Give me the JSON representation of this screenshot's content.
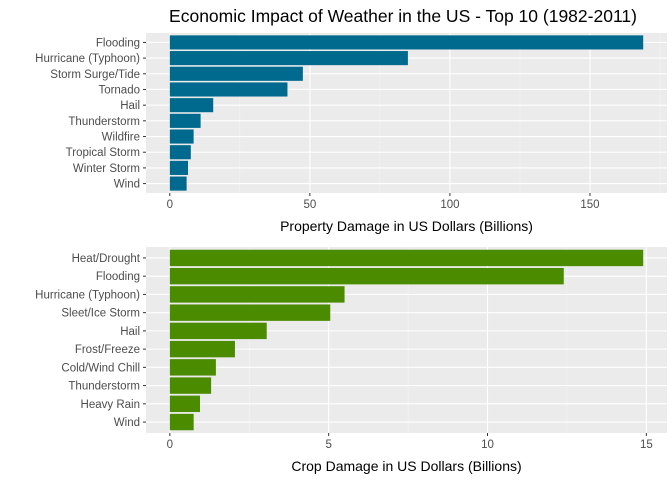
{
  "title": "Economic Impact of Weather in the US - Top 10 (1982-2011)",
  "colors": {
    "panel": "#ebebeb",
    "grid_major": "#ffffff",
    "grid_minor": "#f5f5f5",
    "axis_text": "#4d4d4d"
  },
  "chart_data": [
    {
      "type": "bar",
      "orientation": "horizontal",
      "categories": [
        "Flooding",
        "Hurricane (Typhoon)",
        "Storm Surge/Tide",
        "Tornado",
        "Hail",
        "Thunderstorm",
        "Wildfire",
        "Tropical Storm",
        "Winter Storm",
        "Wind"
      ],
      "values": [
        169,
        85,
        47.5,
        42,
        15.5,
        11,
        8.5,
        7.5,
        6.5,
        6
      ],
      "xlabel": "Property Damage in US Dollars (Billions)",
      "ylabel": "",
      "xticks": [
        0,
        50,
        100,
        150
      ],
      "xlim": [
        -8.5,
        177.5
      ],
      "color": "#006a8e",
      "grid": true
    },
    {
      "type": "bar",
      "orientation": "horizontal",
      "categories": [
        "Heat/Drought",
        "Flooding",
        "Hurricane (Typhoon)",
        "Sleet/Ice Storm",
        "Hail",
        "Frost/Freeze",
        "Cold/Wind Chill",
        "Thunderstorm",
        "Heavy Rain",
        "Wind"
      ],
      "values": [
        14.9,
        12.4,
        5.5,
        5.05,
        3.05,
        2.05,
        1.45,
        1.3,
        0.95,
        0.75
      ],
      "xlabel": "Crop Damage in US Dollars (Billions)",
      "ylabel": "",
      "xticks": [
        0,
        5,
        10,
        15
      ],
      "xlim": [
        -0.75,
        15.65
      ],
      "color": "#4b8b00",
      "grid": true
    }
  ]
}
